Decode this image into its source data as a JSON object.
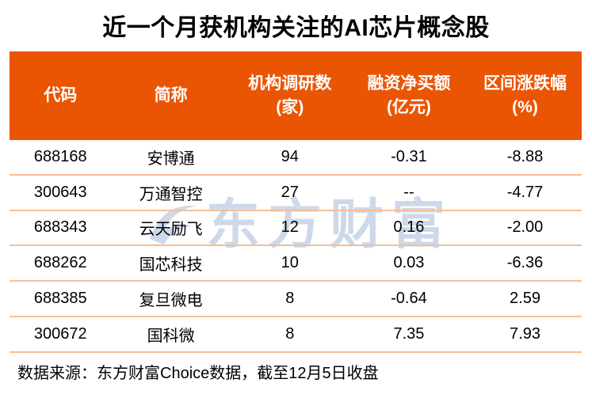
{
  "colors": {
    "accent": "#ea5504",
    "divider": "#f6bd95",
    "watermark": "#cdd9ea",
    "text": "#000000"
  },
  "chart_data": {
    "type": "table",
    "title": "近一个月获机构关注的AI芯片概念股",
    "columns": [
      {
        "label": "代码",
        "unit": ""
      },
      {
        "label": "简称",
        "unit": ""
      },
      {
        "label": "机构调研数",
        "unit": "(家)"
      },
      {
        "label": "融资净买额",
        "unit": "(亿元)"
      },
      {
        "label": "区间涨跌幅",
        "unit": "(%)"
      }
    ],
    "rows": [
      [
        "688168",
        "安博通",
        "94",
        "-0.31",
        "-8.88"
      ],
      [
        "300643",
        "万通智控",
        "27",
        "--",
        "-4.77"
      ],
      [
        "688343",
        "云天励飞",
        "12",
        "0.16",
        "-2.00"
      ],
      [
        "688262",
        "国芯科技",
        "10",
        "0.03",
        "-6.36"
      ],
      [
        "688385",
        "复旦微电",
        "8",
        "-0.64",
        "2.59"
      ],
      [
        "300672",
        "国科微",
        "8",
        "7.35",
        "7.93"
      ]
    ]
  },
  "watermark": {
    "text": "东方财富"
  },
  "footer": {
    "text": "数据来源：东方财富Choice数据，截至12月5日收盘"
  }
}
